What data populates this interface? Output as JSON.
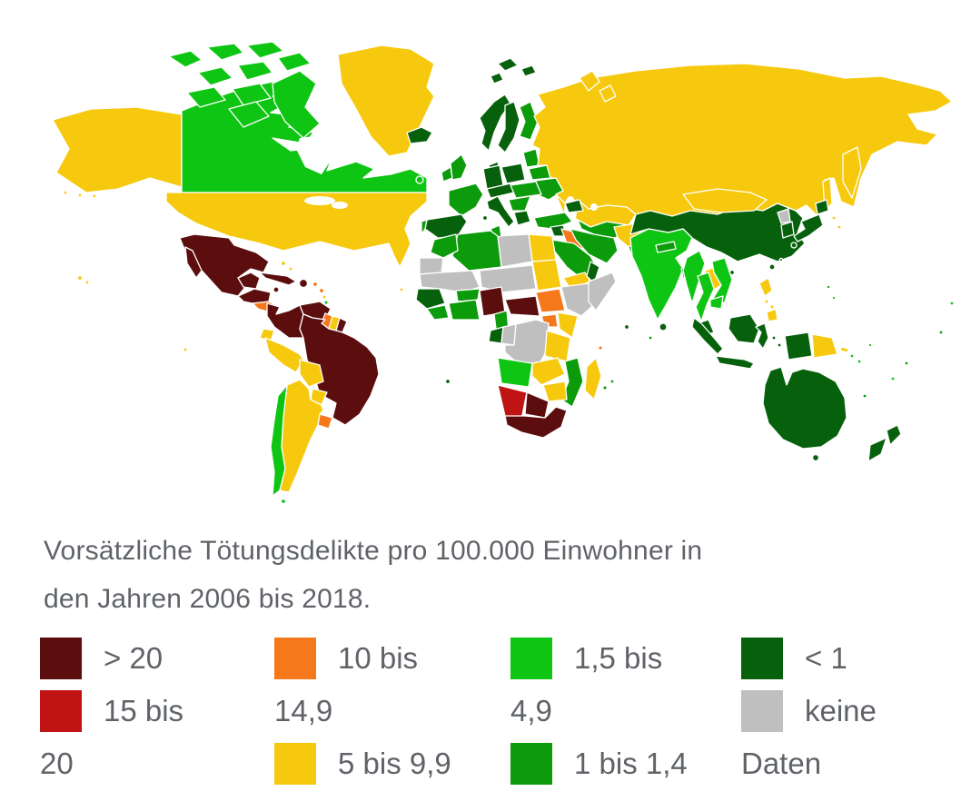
{
  "figure": {
    "caption_line1": "Vorsätzliche Tötungsdelikte pro 100.000 Einwohner in",
    "caption_line2": "den Jahren 2006 bis 2018."
  },
  "colors": {
    "gt-20": "#5C0E0E",
    "15-20": "#C01313",
    "10-14_9": "#F5791B",
    "5-9_9": "#F6C90E",
    "1_5-4_9": "#0FC513",
    "1-1_4": "#0B9B0B",
    "lt-1": "#07610C",
    "no-data": "#BFBFBF",
    "ocean": "#FFFFFF",
    "border": "#FFFFFF",
    "text": "#5F6368"
  },
  "legend": {
    "columns": [
      {
        "rows": [
          {
            "swatch": "gt-20",
            "text": "> 20"
          },
          {
            "swatch": "15-20",
            "text": "15 bis"
          },
          {
            "swatch": null,
            "text": "20"
          }
        ]
      },
      {
        "rows": [
          {
            "swatch": "10-14_9",
            "text": "10 bis"
          },
          {
            "swatch": null,
            "text": "14,9"
          },
          {
            "swatch": "5-9_9",
            "text": "5 bis 9,9"
          }
        ]
      },
      {
        "rows": [
          {
            "swatch": "1_5-4_9",
            "text": "1,5 bis"
          },
          {
            "swatch": null,
            "text": "4,9"
          },
          {
            "swatch": "1-1_4",
            "text": "1 bis 1,4"
          }
        ]
      },
      {
        "rows": [
          {
            "swatch": "lt-1",
            "text": "< 1"
          },
          {
            "swatch": "no-data",
            "text": "keine"
          },
          {
            "swatch": null,
            "text": "Daten"
          }
        ]
      }
    ]
  },
  "map": {
    "regions": {
      "alaska": "5-9_9",
      "aleutians": "5-9_9",
      "canada": "1_5-4_9",
      "greenland": "5-9_9",
      "usa": "5-9_9",
      "hawaii": "5-9_9",
      "mexico": "gt-20",
      "guatemala-honduras": "gt-20",
      "costa-rica-panama": "10-14_9",
      "cuba": "gt-20",
      "hispaniola": "gt-20",
      "jamaica": "gt-20",
      "puerto-rico": "10-14_9",
      "bahamas": "5-9_9",
      "antilles-a": "10-14_9",
      "antilles-b": "5-9_9",
      "antilles-c": "1_5-4_9",
      "antilles-d": "10-14_9",
      "trinidad": "gt-20",
      "galapagos": "5-9_9",
      "colombia": "gt-20",
      "venezuela": "gt-20",
      "guyana": "10-14_9",
      "suriname": "5-9_9",
      "french-guiana": "gt-20",
      "brazil": "gt-20",
      "ecuador": "5-9_9",
      "peru": "5-9_9",
      "bolivia": "5-9_9",
      "paraguay": "5-9_9",
      "argentina": "5-9_9",
      "chile": "1_5-4_9",
      "uruguay": "10-14_9",
      "tierra-del-fuego": "1_5-4_9",
      "iceland": "lt-1",
      "svalbard": "lt-1",
      "norway": "lt-1",
      "sweden": "lt-1",
      "finland": "1-1_4",
      "denmark": "lt-1",
      "uk": "1-1_4",
      "ireland": "1-1_4",
      "france": "1-1_4",
      "spain": "lt-1",
      "portugal": "1-1_4",
      "germany": "lt-1",
      "poland": "lt-1",
      "alpine": "lt-1",
      "italy": "lt-1",
      "hungary-romania": "1-1_4",
      "balkans": "1-1_4",
      "greece": "lt-1",
      "baltics": "1-1_4",
      "belarus": "1-1_4",
      "ukraine": "1-1_4",
      "madeira": "1-1_4",
      "russia": "5-9_9",
      "novaya-zemlya": "5-9_9",
      "kamchatka": "5-9_9",
      "sakhalin": "5-9_9",
      "kurils": "5-9_9",
      "kazakhstan": "5-9_9",
      "central-asia": "1-1_4",
      "caucasus": "lt-1",
      "turkey": "1-1_4",
      "syria": "lt-1",
      "iraq": "10-14_9",
      "iran": "1-1_4",
      "afghanistan": "5-9_9",
      "pakistan": "1-1_4",
      "saudi-arabia": "1-1_4",
      "yemen": "5-9_9",
      "oman": "lt-1",
      "egypt": "5-9_9",
      "libya": "no-data",
      "tunisia": "1-1_4",
      "algeria": "1-1_4",
      "morocco": "1-1_4",
      "western-sahara": "no-data",
      "mauritania-mali": "no-data",
      "niger-chad": "no-data",
      "sudan": "5-9_9",
      "senegal-guinea": "lt-1",
      "sierra-liberia": "1-1_4",
      "ivory-ghana": "1-1_4",
      "burkina": "1-1_4",
      "nigeria": "gt-20",
      "cameroon": "1-1_4",
      "car": "gt-20",
      "south-sudan": "10-14_9",
      "ethiopia": "no-data",
      "somalia": "no-data",
      "uganda": "10-14_9",
      "kenya": "5-9_9",
      "gabon": "lt-1",
      "congo": "no-data",
      "drc": "no-data",
      "tanzania": "5-9_9",
      "angola": "1_5-4_9",
      "zambia": "5-9_9",
      "mozambique": "1-1_4",
      "zimbabwe": "5-9_9",
      "botswana": "gt-20",
      "namibia": "15-20",
      "south-africa": "gt-20",
      "madagascar": "5-9_9",
      "cape-verde": "5-9_9",
      "seychelles": "lt-1",
      "comoros": "10-14_9",
      "mauritius": "1-1_4",
      "st-helena": "lt-1",
      "china": "lt-1",
      "mongolia": "5-9_9",
      "north-korea": "no-data",
      "south-korea": "lt-1",
      "japan": "lt-1",
      "taiwan": "lt-1",
      "hainan": "lt-1",
      "india": "1_5-4_9",
      "nepal": "1-1_4",
      "bangladesh": "1-1_4",
      "sri-lanka": "lt-1",
      "myanmar": "1_5-4_9",
      "thailand": "1_5-4_9",
      "laos": "5-9_9",
      "vietnam": "1_5-4_9",
      "cambodia": "1_5-4_9",
      "malaysia": "lt-1",
      "indonesia": "lt-1",
      "philippines": "5-9_9",
      "png": "5-9_9",
      "solomons": "5-9_9",
      "pacific-bright": "1_5-4_9",
      "pacific-mid": "1-1_4",
      "maldives": "1-1_4",
      "australia": "lt-1",
      "new-zealand": "lt-1"
    }
  }
}
